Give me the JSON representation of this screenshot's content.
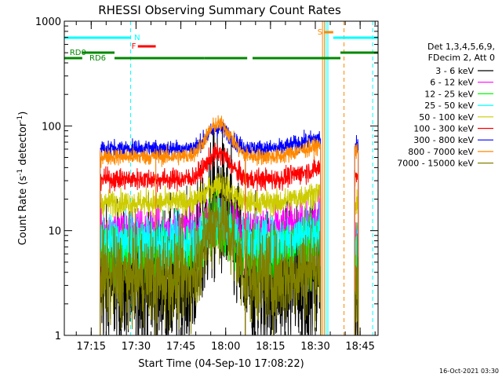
{
  "chart_data": {
    "type": "line",
    "title": "RHESSI Observing Summary Count Rates",
    "xlabel": "Start Time (04-Sep-10 17:08:22)",
    "ylabel_main": "Count Rate (s",
    "ylabel_sup": "-1",
    "ylabel_tail": " detector",
    "ylabel_end": ")",
    "yscale": "log",
    "ylim": [
      1,
      1000
    ],
    "xlim_minutes": [
      17.1,
      18.85
    ],
    "y_tick_labels": [
      {
        "value": 1,
        "label": "1"
      },
      {
        "value": 10,
        "label": "10"
      },
      {
        "value": 100,
        "label": "100"
      },
      {
        "value": 1000,
        "label": "1000"
      }
    ],
    "x_ticks": [
      {
        "t": 17.25,
        "label": "17:15"
      },
      {
        "t": 17.5,
        "label": "17:30"
      },
      {
        "t": 17.75,
        "label": "17:45"
      },
      {
        "t": 18.0,
        "label": "18:00"
      },
      {
        "t": 18.25,
        "label": "18:15"
      },
      {
        "t": 18.5,
        "label": "18:30"
      },
      {
        "t": 18.75,
        "label": "18:45"
      }
    ],
    "legend": {
      "placement": "right",
      "header": [
        "Det 1,3,4,5,6,9,",
        "FDecim 2, Att 0"
      ]
    },
    "series": [
      {
        "name": "3 - 6 keV",
        "color": "#000000",
        "base": 3.2,
        "flare": 5.5,
        "tail": 2.5,
        "noise": 0.35
      },
      {
        "name": "6 - 12 keV",
        "color": "#ff00ff",
        "base": 10.5,
        "flare": 1.3,
        "tail": 9.5,
        "noise": 0.1
      },
      {
        "name": "12 - 25 keV",
        "color": "#00ff00",
        "base": 6.2,
        "flare": 1.9,
        "tail": 5.5,
        "noise": 0.15
      },
      {
        "name": "25 - 50 keV",
        "color": "#00ffff",
        "base": 7.8,
        "flare": 1.6,
        "tail": 7.0,
        "noise": 0.12
      },
      {
        "name": "50 - 100 keV",
        "color": "#cccc00",
        "base": 18.5,
        "flare": 1.5,
        "tail": 17.0,
        "noise": 0.06
      },
      {
        "name": "100 - 300 keV",
        "color": "#ff0000",
        "base": 31,
        "flare": 1.75,
        "tail": 34,
        "noise": 0.05
      },
      {
        "name": "300 - 800 keV",
        "color": "#0000ff",
        "base": 61,
        "flare": 1.55,
        "tail": 63,
        "noise": 0.04
      },
      {
        "name": "800 - 7000 keV",
        "color": "#ff8800",
        "base": 51,
        "flare": 2.05,
        "tail": 58,
        "noise": 0.04
      },
      {
        "name": "7000 - 15000 keV",
        "color": "#808000",
        "base": 3.6,
        "flare": 3.6,
        "tail": 3.0,
        "noise": 0.22
      }
    ],
    "flags": [
      {
        "label": "N",
        "color": "#00ffff",
        "segments": [
          [
            17.1,
            17.47
          ],
          [
            18.6,
            18.85
          ]
        ]
      },
      {
        "label": "F",
        "color": "#ff0000",
        "segments": [
          [
            17.51,
            17.61
          ]
        ]
      },
      {
        "label": "S",
        "color": "#ff8800",
        "segments": [
          [
            18.55,
            18.6
          ]
        ]
      },
      {
        "label": "RD0",
        "color": "#008800",
        "segments": [
          [
            17.2,
            17.38
          ],
          [
            18.64,
            18.85
          ]
        ]
      },
      {
        "label": "RD6",
        "color": "#008800",
        "segments": [
          [
            17.1,
            17.2
          ],
          [
            17.38,
            17.88
          ],
          [
            17.88,
            18.12
          ],
          [
            18.15,
            18.64
          ]
        ]
      }
    ],
    "vertical_markers": [
      {
        "t": 17.1,
        "color": "#00ffff",
        "style": "solid"
      },
      {
        "t": 17.47,
        "color": "#00ffff",
        "style": "dashed"
      },
      {
        "t": 18.54,
        "color": "#ff8800",
        "style": "solid"
      },
      {
        "t": 18.55,
        "color": "#ff8800",
        "style": "solid"
      },
      {
        "t": 18.56,
        "color": "#00ffff",
        "style": "solid"
      },
      {
        "t": 18.57,
        "color": "#00ffff",
        "style": "solid"
      },
      {
        "t": 18.66,
        "color": "#ff8800",
        "style": "dashed"
      },
      {
        "t": 18.82,
        "color": "#00ffff",
        "style": "dashed"
      }
    ],
    "data_windows": [
      [
        17.3,
        17.61
      ],
      [
        17.61,
        18.11
      ],
      [
        18.11,
        18.53
      ],
      [
        18.72,
        18.74
      ]
    ],
    "flare_peak_t": 17.96,
    "footer": "16-Oct-2021 03:30"
  }
}
